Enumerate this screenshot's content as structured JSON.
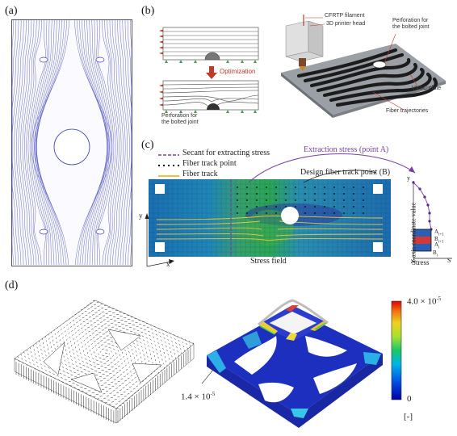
{
  "panels": {
    "a": {
      "label": "(a)"
    },
    "b": {
      "label": "(b)",
      "optimization_label": "Optimization",
      "perforation_label": "Perforation for\nthe bolted joint",
      "printer_labels": {
        "filament": "CFRTP filament",
        "head": "3D printer head",
        "perforation": "Perforation for\nthe bolted joint",
        "plate": "VVSC plate",
        "trajectories": "Fiber trajectories"
      }
    },
    "c": {
      "label": "(c)",
      "legend": [
        {
          "label": "Secant for extracting stress",
          "color": "#7b3fa8"
        },
        {
          "label": "Fiber track point",
          "color": "#000000"
        },
        {
          "label": "Fiber track",
          "color": "#e8c53a"
        }
      ],
      "extraction_label": "Extraction stress (point A)",
      "design_label": "Design fiber track point (B)",
      "stress_field_label": "Stress field",
      "axis_x": "x",
      "axis_y": "y",
      "side_ylabel": "Y-axis coordinate value",
      "side_y": "y",
      "side_x": "S",
      "side_stress": "Stress",
      "a_i1": "A",
      "a_i1_sub": "i+1",
      "b_i1": "B",
      "b_i1_sub": "i+1",
      "a_i": "A",
      "a_i_sub": "i",
      "b_i": "B",
      "b_i_sub": "i"
    },
    "d": {
      "label": "(d)",
      "colorbar_max": "4.0 × 10",
      "colorbar_max_exp": "-5",
      "colorbar_min": "0",
      "colorbar_unit": "[-]",
      "annotation": "1.4 × 10",
      "annotation_exp": "-5"
    }
  }
}
